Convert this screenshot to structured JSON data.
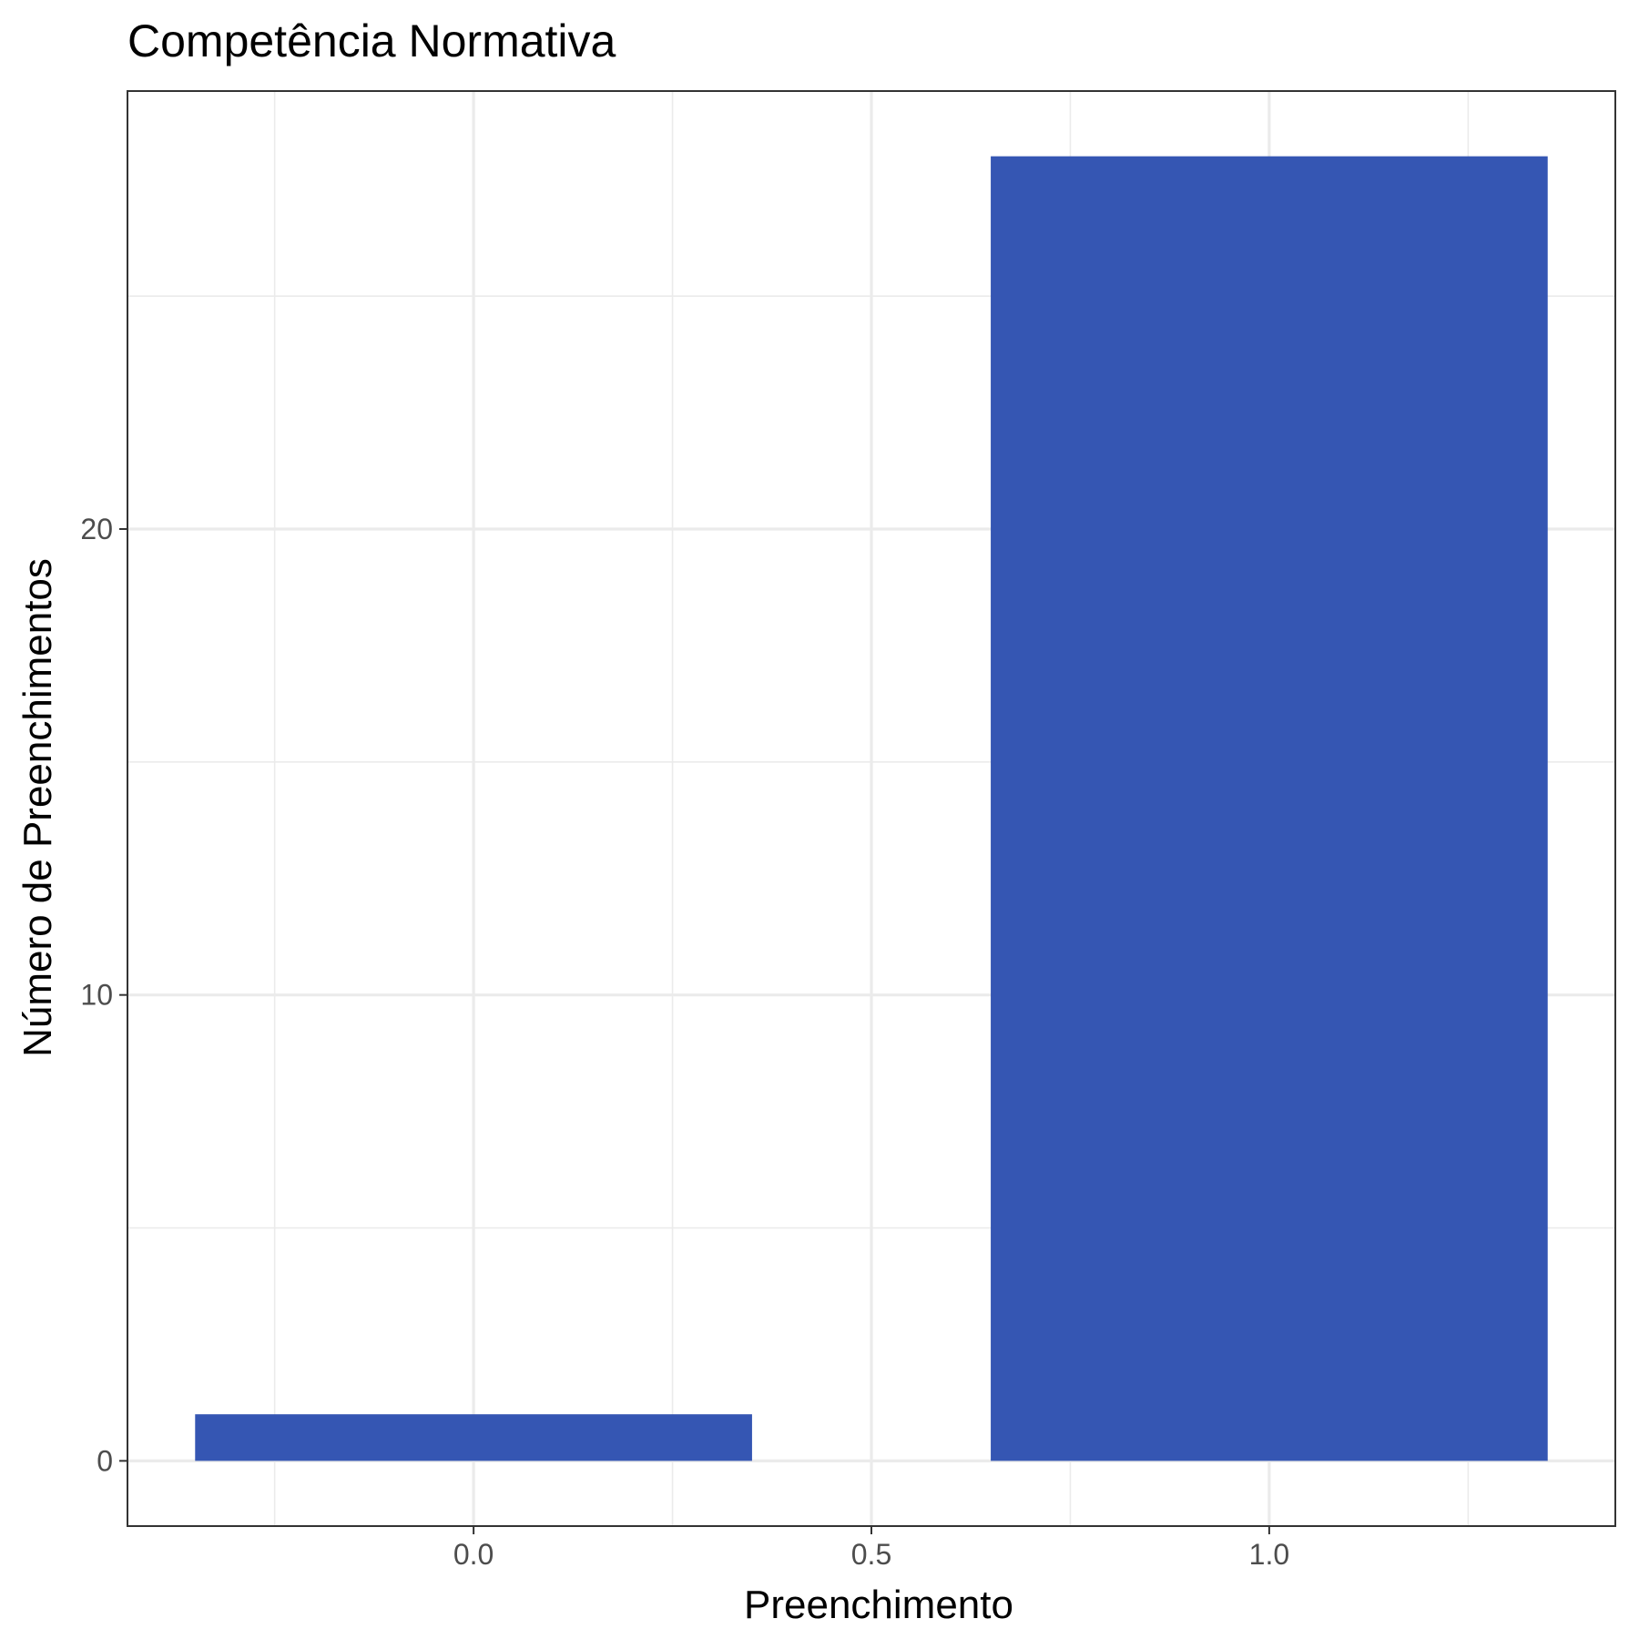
{
  "chart_data": {
    "type": "bar",
    "title": "Competência Normativa",
    "xlabel": "Preenchimento",
    "ylabel": "Número de Preenchimentos",
    "x": [
      0,
      1
    ],
    "values": [
      1,
      28
    ],
    "bar_width": 0.7,
    "xlim": [
      -0.435,
      1.435
    ],
    "ylim": [
      -1.4,
      29.4
    ],
    "x_ticks": [
      0.0,
      0.5,
      1.0
    ],
    "x_tick_labels": [
      "0.0",
      "0.5",
      "1.0"
    ],
    "y_ticks": [
      0,
      10,
      20
    ],
    "y_tick_labels": [
      "0",
      "10",
      "20"
    ],
    "grid": true,
    "legend": "none",
    "bar_color": "#3556b3",
    "grid_color": "#ebebeb",
    "panel_border_color": "#333333"
  }
}
